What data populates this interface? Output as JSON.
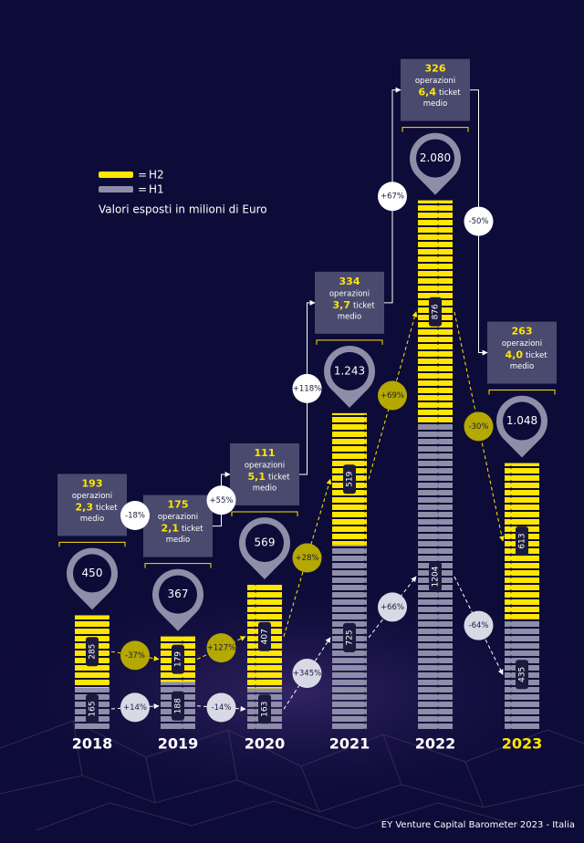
{
  "chart_data": {
    "type": "stacked_bar",
    "subtitle": "Valori esposti in milioni di Euro",
    "legend_separator": "=",
    "categories": [
      "2018",
      "2019",
      "2020",
      "2021",
      "2022",
      "2023"
    ],
    "highlight_category_color": "#ffe600",
    "series": [
      {
        "name": "H1",
        "color": "#8e8ea8",
        "values": [
          165,
          188,
          163,
          725,
          1204,
          435
        ]
      },
      {
        "name": "H2",
        "color": "#ffe600",
        "values": [
          285,
          179,
          407,
          519,
          876,
          613
        ]
      }
    ],
    "totals": {
      "values": [
        450,
        367,
        569,
        1243,
        2080,
        1048
      ],
      "value_labels": [
        "450",
        "367",
        "569",
        "1.243",
        "2.080",
        "1.048"
      ]
    },
    "operations": [
      193,
      175,
      111,
      334,
      326,
      263
    ],
    "operations_label": "operazioni",
    "ticket_medio": {
      "values": [
        2.3,
        2.1,
        5.1,
        3.7,
        6.4,
        4.0
      ],
      "value_labels": [
        "2,3",
        "2,1",
        "5,1",
        "3,7",
        "6,4",
        "4,0"
      ]
    },
    "ticket_medio_label": [
      "ticket",
      "medio"
    ],
    "operations_change": {
      "values": [
        -18,
        55,
        118,
        67,
        -50
      ],
      "value_labels": [
        "-18%",
        "+55%",
        "+118%",
        "+67%",
        "-50%"
      ]
    },
    "h1_change": {
      "values": [
        14,
        -14,
        345,
        66,
        -64
      ],
      "value_labels": [
        "+14%",
        "-14%",
        "+345%",
        "+66%",
        "-64%"
      ]
    },
    "h2_change": {
      "values": [
        -37,
        127,
        28,
        69,
        -30
      ],
      "value_labels": [
        "-37%",
        "+127%",
        "+28%",
        "+69%",
        "-30%"
      ]
    },
    "ylim": [
      0,
      2100
    ],
    "footer": "EY Venture Capital Barometer 2023 - Italia"
  }
}
